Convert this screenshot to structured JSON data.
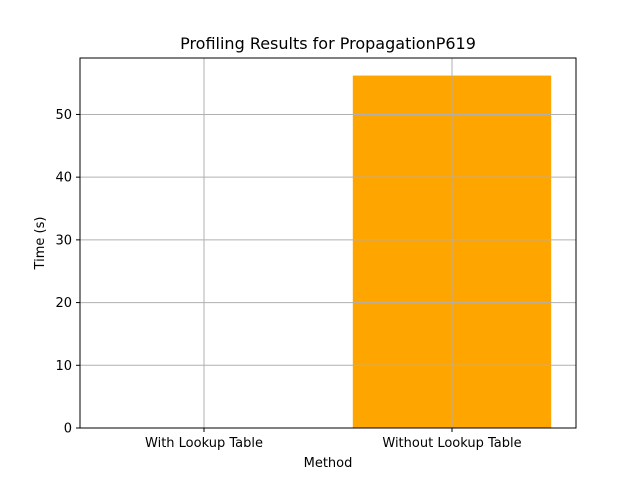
{
  "chart_data": {
    "type": "bar",
    "title": "Profiling Results for PropagationP619",
    "xlabel": "Method",
    "ylabel": "Time (s)",
    "categories": [
      "With Lookup Table",
      "Without Lookup Table"
    ],
    "values": [
      0.0,
      56.2
    ],
    "ylim": [
      0,
      59.0
    ],
    "yticks": [
      0,
      10,
      20,
      30,
      40,
      50
    ],
    "grid": true,
    "bar_color": "#ffa500",
    "legend": "none"
  }
}
